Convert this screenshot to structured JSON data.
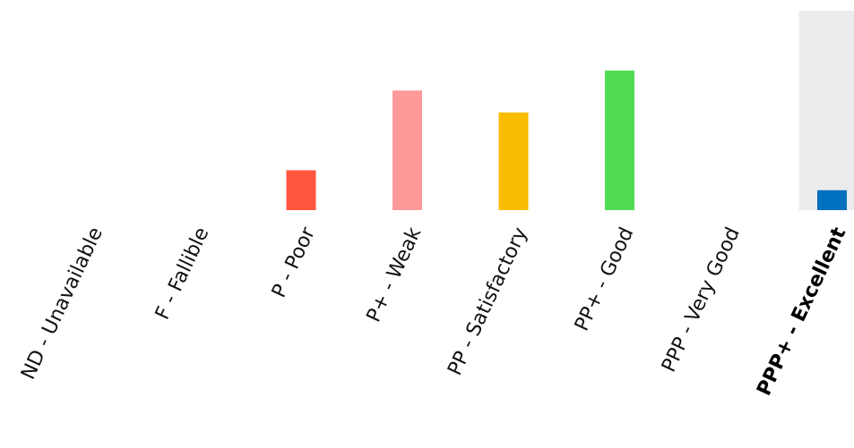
{
  "chart_data": {
    "type": "bar",
    "title": "",
    "xlabel": "",
    "ylabel": "",
    "categories": [
      "ND - Unavailable",
      "F - Fallible",
      "P - Poor",
      "P+ - Weak",
      "PP - Satisfactory",
      "PP+ - Good",
      "PPP - Very Good",
      "PPP+ - Excellent"
    ],
    "values": [
      0,
      0,
      20,
      60,
      49,
      70,
      0,
      10
    ],
    "ylim": [
      0,
      100
    ],
    "grid": false,
    "legend": "none",
    "highlighted_category": "PPP+ - Excellent",
    "colors": [
      "#888888",
      "#888888",
      "#ff5640",
      "#ff9a9a",
      "#fbbd01",
      "#50dc52",
      "#888888",
      "#0070c0"
    ],
    "highlight_background_color": "#ebeced",
    "label_color": "#111111"
  }
}
